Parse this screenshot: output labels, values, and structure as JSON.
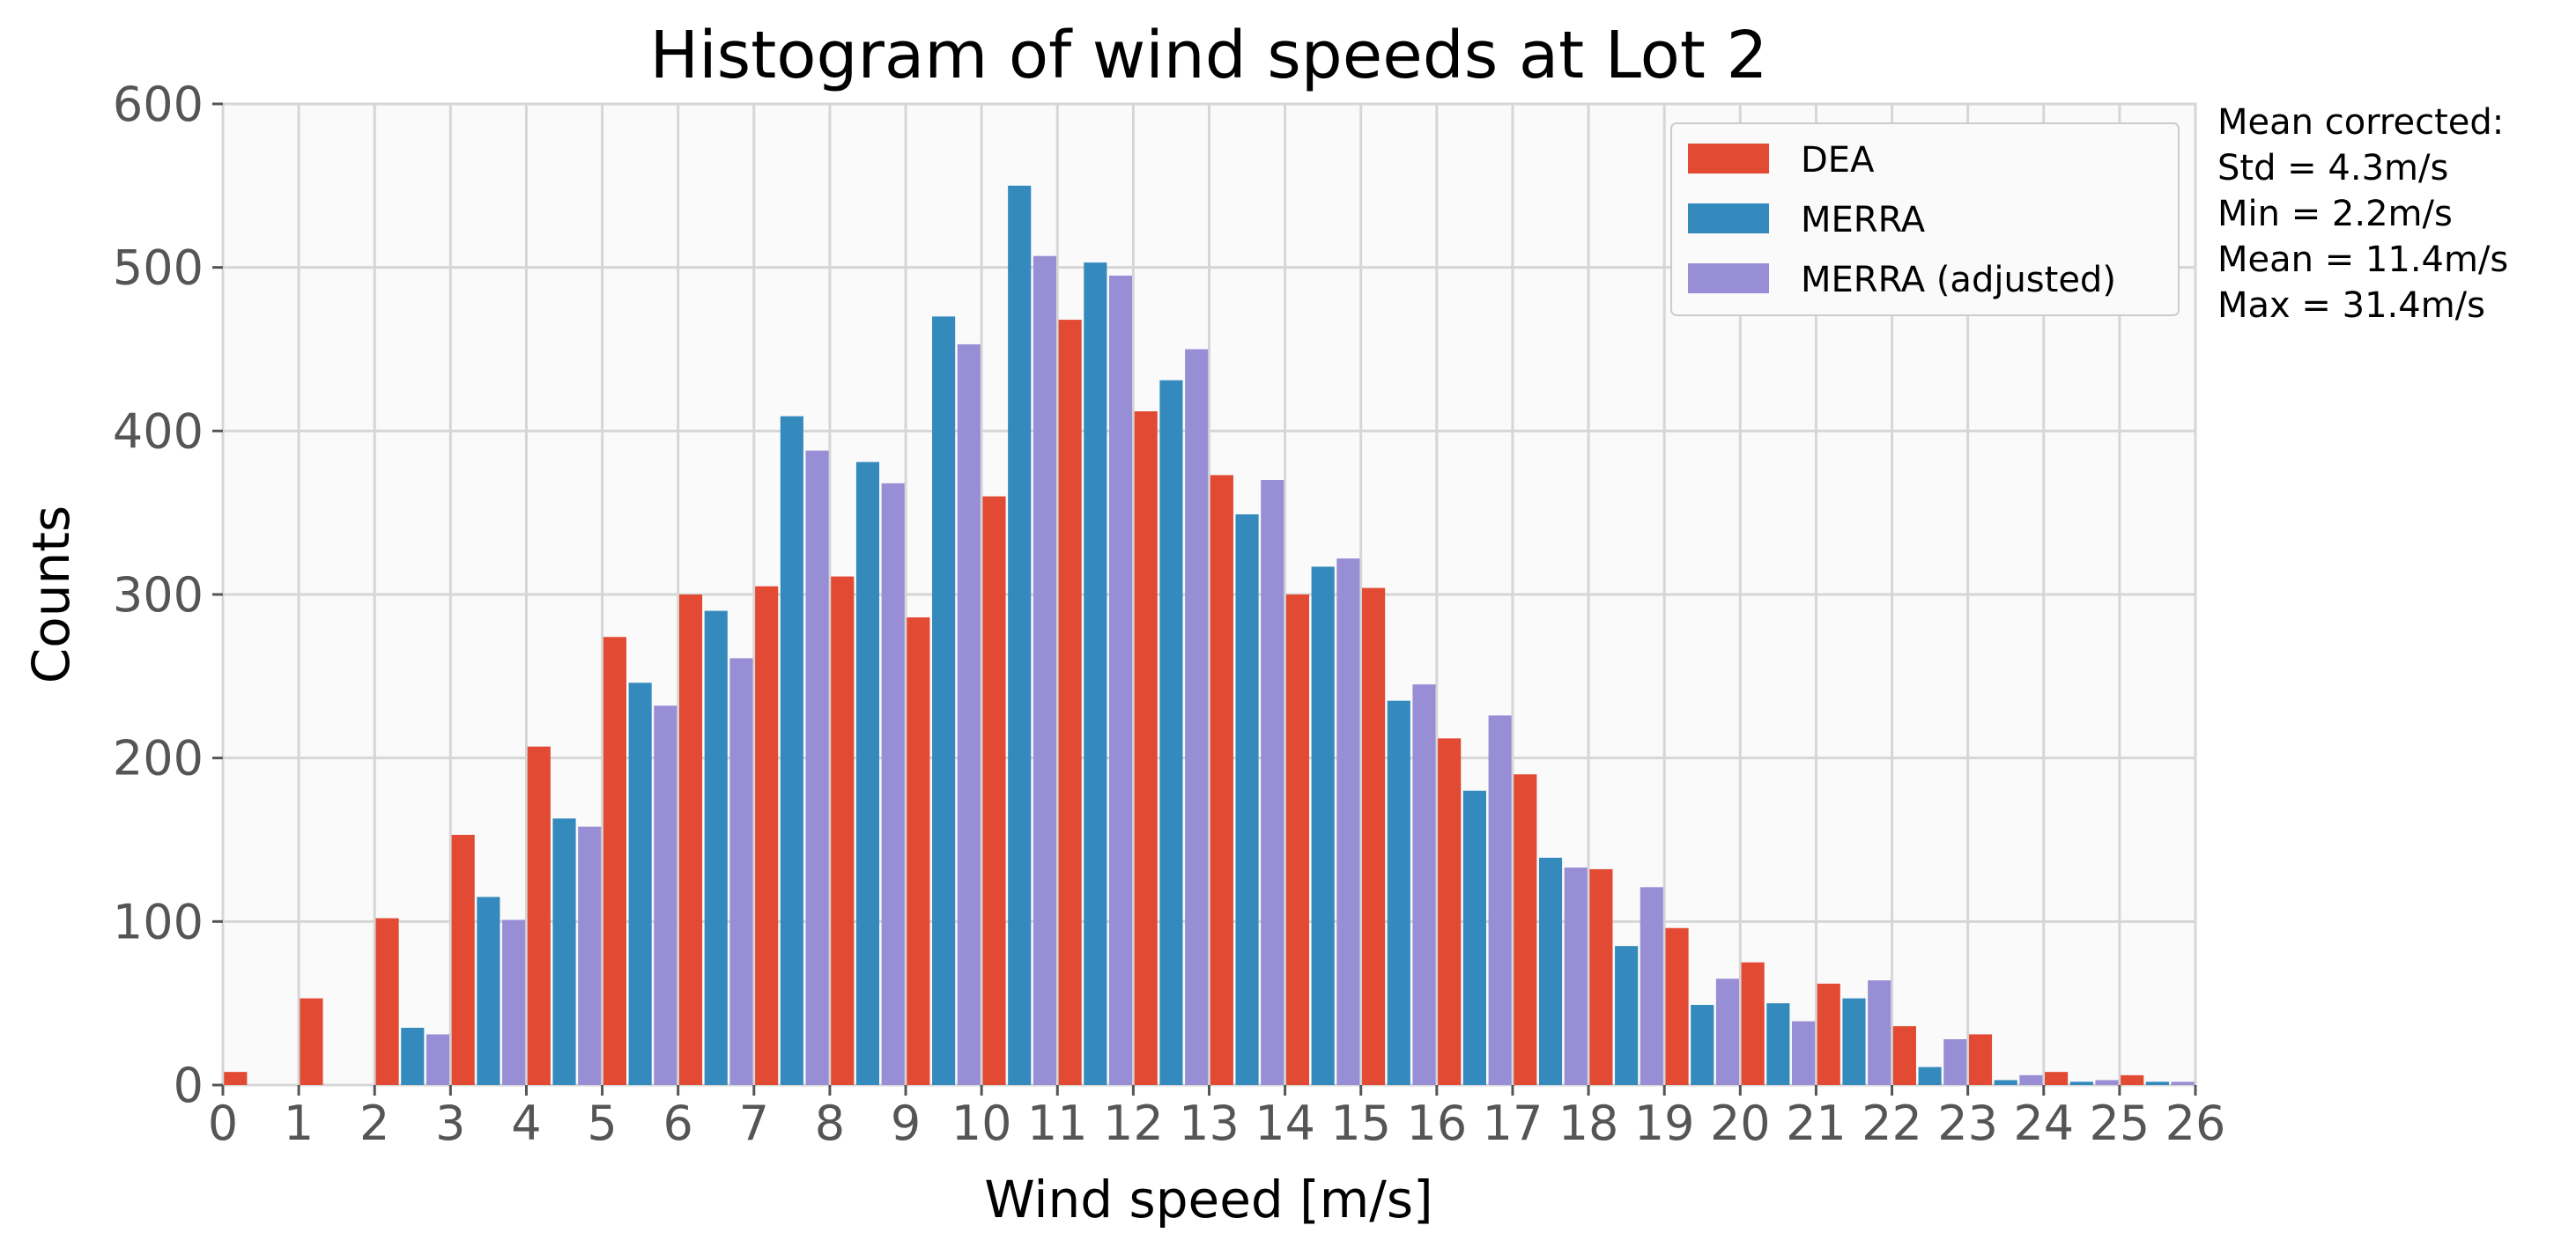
{
  "chart_data": {
    "type": "bar",
    "title": "Histogram of wind speeds at Lot 2",
    "xlabel": "Wind speed [m/s]",
    "ylabel": "Counts",
    "xlim": [
      0,
      26
    ],
    "ylim": [
      0,
      600
    ],
    "x_ticks": [
      "0",
      "1",
      "2",
      "3",
      "4",
      "5",
      "6",
      "7",
      "8",
      "9",
      "10",
      "11",
      "12",
      "13",
      "14",
      "15",
      "16",
      "17",
      "18",
      "19",
      "20",
      "21",
      "22",
      "23",
      "24",
      "25",
      "26"
    ],
    "y_ticks": [
      "0",
      "100",
      "200",
      "300",
      "400",
      "500",
      "600"
    ],
    "grid": true,
    "legend_position": "top-right",
    "bin_starts": [
      0,
      1,
      2,
      3,
      4,
      5,
      6,
      7,
      8,
      9,
      10,
      11,
      12,
      13,
      14,
      15,
      16,
      17,
      18,
      19,
      20,
      21,
      22,
      23,
      24,
      25
    ],
    "series": [
      {
        "name": "DEA",
        "color": "#E24A33",
        "values": [
          8,
          53,
          102,
          153,
          207,
          274,
          300,
          305,
          311,
          286,
          360,
          468,
          412,
          373,
          300,
          304,
          212,
          190,
          132,
          96,
          75,
          62,
          36,
          31,
          8,
          6
        ]
      },
      {
        "name": "MERRA",
        "color": "#348ABD",
        "values": [
          0,
          0,
          35,
          115,
          163,
          246,
          290,
          409,
          381,
          470,
          550,
          503,
          431,
          349,
          317,
          235,
          180,
          139,
          85,
          49,
          50,
          53,
          11,
          3,
          2,
          2
        ]
      },
      {
        "name": "MERRA (adjusted)",
        "color": "#988ED5",
        "values": [
          0,
          0,
          31,
          101,
          158,
          232,
          261,
          388,
          368,
          453,
          507,
          495,
          450,
          370,
          322,
          245,
          226,
          133,
          121,
          65,
          39,
          64,
          28,
          6,
          3,
          2
        ]
      }
    ],
    "annotation": [
      "Mean corrected:",
      "Std = 4.3m/s",
      "Min = 2.2m/s",
      "Mean = 11.4m/s",
      "Max = 31.4m/s"
    ]
  }
}
